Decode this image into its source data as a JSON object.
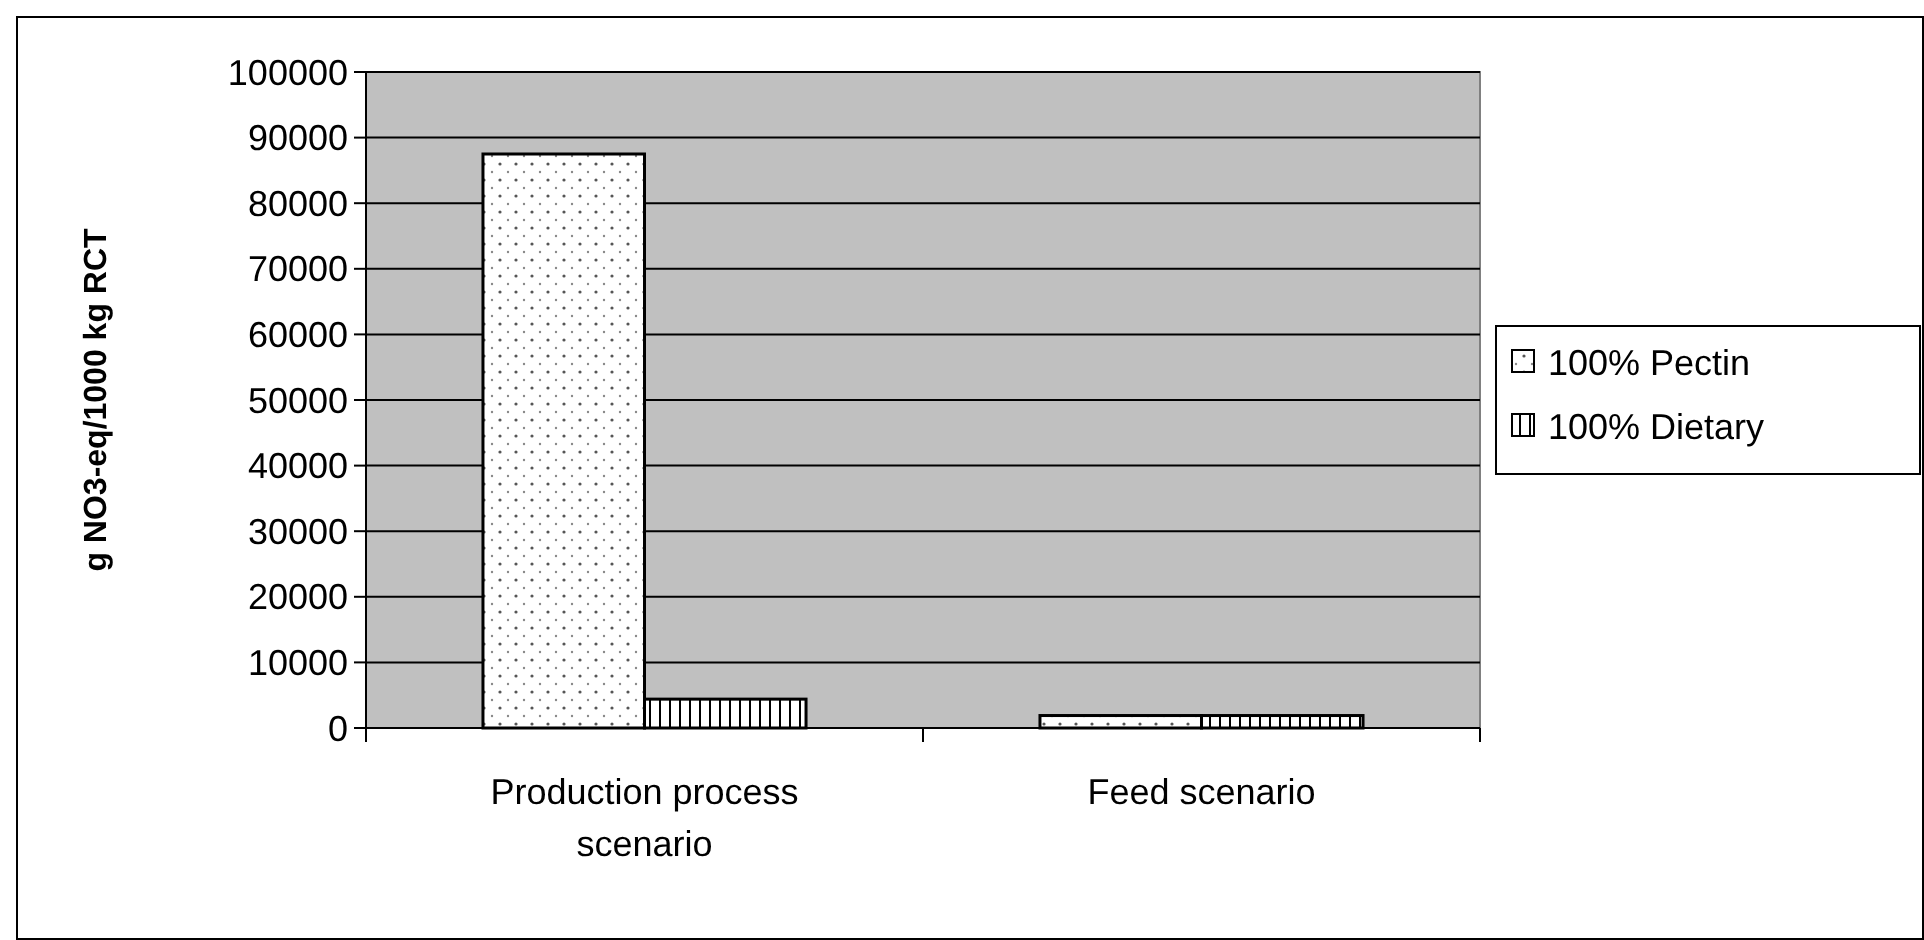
{
  "chart_data": {
    "type": "bar",
    "ylabel": "g NO3-eq/1000 kg RCT",
    "categories": [
      "Production process scenario",
      "Feed scenario"
    ],
    "series": [
      {
        "name": "100% Pectin",
        "color": "#ffffff",
        "values": [
          87500,
          1900
        ]
      },
      {
        "name": "100% Dietary",
        "color": "#ffffff",
        "values": [
          4400,
          1900
        ]
      }
    ],
    "ylim": [
      0,
      100000
    ],
    "yticks": [
      0,
      10000,
      20000,
      30000,
      40000,
      50000,
      60000,
      70000,
      80000,
      90000,
      100000
    ],
    "grid": "y",
    "legend": "right"
  }
}
